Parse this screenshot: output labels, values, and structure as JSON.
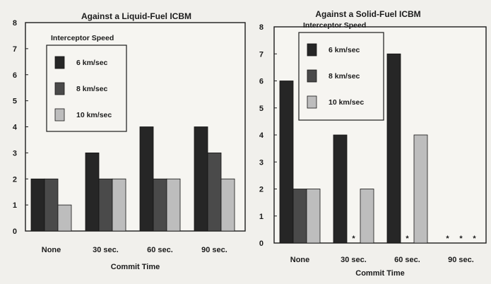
{
  "chart_data": [
    {
      "type": "bar",
      "title": "Against a Liquid-Fuel ICBM",
      "xlabel": "Commit Time",
      "ylabel": "",
      "ylim": [
        0,
        8
      ],
      "yticks": [
        0,
        1,
        2,
        3,
        4,
        5,
        6,
        7,
        8
      ],
      "categories": [
        "None",
        "30 sec.",
        "60 sec.",
        "90 sec."
      ],
      "legend_title": "Interceptor Speed",
      "legend_position": "top-left",
      "series": [
        {
          "name": "6 km/sec",
          "values": [
            2,
            3,
            4,
            4
          ],
          "color": "#262626"
        },
        {
          "name": "8 km/sec",
          "values": [
            2,
            2,
            2,
            3
          ],
          "color": "#4a4a4a"
        },
        {
          "name": "10 km/sec",
          "values": [
            1,
            2,
            2,
            2
          ],
          "color": "#bdbdbd"
        }
      ],
      "zero_marker": "*"
    },
    {
      "type": "bar",
      "title": "Against a Solid-Fuel ICBM",
      "xlabel": "Commit Time",
      "ylabel": "",
      "ylim": [
        0,
        8
      ],
      "yticks": [
        0,
        1,
        2,
        3,
        4,
        5,
        6,
        7,
        8
      ],
      "categories": [
        "None",
        "30 sec.",
        "60 sec.",
        "90 sec."
      ],
      "legend_title": "Interceptor Speed",
      "legend_position": "top-left",
      "series": [
        {
          "name": "6 km/sec",
          "values": [
            6,
            4,
            7,
            0
          ],
          "color": "#262626"
        },
        {
          "name": "8 km/sec",
          "values": [
            2,
            0,
            0,
            0
          ],
          "color": "#4a4a4a"
        },
        {
          "name": "10 km/sec",
          "values": [
            2,
            2,
            4,
            0
          ],
          "color": "#bdbdbd"
        }
      ],
      "zero_marker": "*"
    }
  ]
}
